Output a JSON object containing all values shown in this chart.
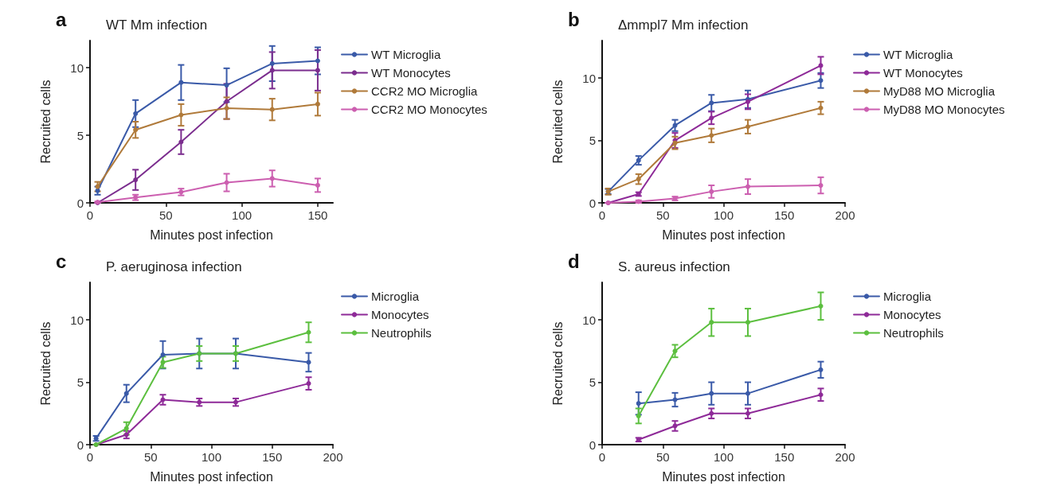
{
  "chart_data": [
    {
      "type": "line",
      "title": "WT Mm infection",
      "annotations": [
        "a"
      ],
      "xlabel": "Minutes post infection",
      "ylabel": "Recruited cells",
      "x": [
        5,
        30,
        60,
        90,
        120,
        150
      ],
      "xlim": [
        0,
        160
      ],
      "xticks": [
        0,
        50,
        100,
        150
      ],
      "ylim": [
        0,
        12
      ],
      "yticks": [
        0,
        5,
        10
      ],
      "legend": "right",
      "marker": "circle",
      "line_style": "solid",
      "grid": false,
      "series": [
        {
          "name": "WT Microglia",
          "color": "#3a5aa8",
          "values": [
            0.9,
            6.6,
            8.9,
            8.7,
            10.3,
            10.5
          ],
          "errors": [
            0.3,
            1.0,
            1.3,
            1.25,
            1.3,
            1.0
          ]
        },
        {
          "name": "WT Monocytes",
          "color": "#7b2d8e",
          "values": [
            0,
            1.7,
            4.5,
            7.5,
            9.8,
            9.8
          ],
          "errors": [
            0,
            0.75,
            0.9,
            1.3,
            1.35,
            1.5
          ]
        },
        {
          "name": "CCR2 MO Microglia",
          "color": "#b07a3a",
          "values": [
            1.2,
            5.4,
            6.5,
            7.0,
            6.9,
            7.3
          ],
          "errors": [
            0.35,
            0.6,
            0.8,
            0.8,
            0.8,
            0.85
          ]
        },
        {
          "name": "CCR2 MO Monocytes",
          "color": "#cc5fb0",
          "values": [
            0.05,
            0.4,
            0.8,
            1.5,
            1.8,
            1.3
          ],
          "errors": [
            0.05,
            0.2,
            0.25,
            0.65,
            0.6,
            0.5
          ]
        }
      ]
    },
    {
      "type": "line",
      "title": "Δmmpl7 Mm infection",
      "annotations": [
        "b"
      ],
      "xlabel": "Minutes post infection",
      "ylabel": "Recruited cells",
      "x": [
        5,
        30,
        60,
        90,
        120,
        180
      ],
      "xlim": [
        0,
        200
      ],
      "xticks": [
        0,
        50,
        100,
        150,
        200
      ],
      "ylim": [
        0,
        13
      ],
      "yticks": [
        0,
        5,
        10
      ],
      "legend": "right",
      "marker": "circle",
      "line_style": "solid",
      "grid": false,
      "series": [
        {
          "name": "WT Microglia",
          "color": "#3a5aa8",
          "values": [
            0.9,
            3.4,
            6.2,
            8.0,
            8.3,
            9.8
          ],
          "errors": [
            0.2,
            0.35,
            0.45,
            0.65,
            0.7,
            0.6
          ]
        },
        {
          "name": "WT Monocytes",
          "color": "#8e2a98",
          "values": [
            0,
            0.7,
            5.0,
            6.8,
            8.1,
            11.0
          ],
          "errors": [
            0,
            0.15,
            0.6,
            0.5,
            0.6,
            0.7
          ]
        },
        {
          "name": "MyD88 MO Microglia",
          "color": "#b07a3a",
          "values": [
            0.9,
            1.9,
            4.8,
            5.4,
            6.1,
            7.6
          ],
          "errors": [
            0.25,
            0.4,
            0.5,
            0.55,
            0.55,
            0.5
          ]
        },
        {
          "name": "MyD88 MO Monocytes",
          "color": "#cc5fb0",
          "values": [
            0,
            0.1,
            0.35,
            0.9,
            1.3,
            1.4
          ],
          "errors": [
            0,
            0.1,
            0.15,
            0.5,
            0.6,
            0.65
          ]
        }
      ]
    },
    {
      "type": "line",
      "title": "P. aeruginosa infection",
      "annotations": [
        "c"
      ],
      "xlabel": "Minutes post infection",
      "ylabel": "Recruited cells",
      "x": [
        5,
        30,
        60,
        90,
        120,
        180
      ],
      "xlim": [
        0,
        200
      ],
      "xticks": [
        0,
        50,
        100,
        150,
        200
      ],
      "ylim": [
        0,
        13
      ],
      "yticks": [
        0,
        5,
        10
      ],
      "legend": "right",
      "marker": "circle",
      "line_style": "solid",
      "grid": false,
      "series": [
        {
          "name": "Microglia",
          "color": "#3a5aa8",
          "values": [
            0.5,
            4.1,
            7.2,
            7.3,
            7.3,
            6.6
          ],
          "errors": [
            0.2,
            0.7,
            1.1,
            1.2,
            1.2,
            0.75
          ]
        },
        {
          "name": "Monocytes",
          "color": "#8e2a98",
          "values": [
            0,
            0.8,
            3.6,
            3.4,
            3.4,
            4.9
          ],
          "errors": [
            0,
            0.3,
            0.4,
            0.3,
            0.3,
            0.5
          ]
        },
        {
          "name": "Neutrophils",
          "color": "#5cbf3f",
          "values": [
            0,
            1.3,
            6.6,
            7.3,
            7.3,
            9.0
          ],
          "errors": [
            0,
            0.5,
            0.45,
            0.6,
            0.6,
            0.8
          ]
        }
      ]
    },
    {
      "type": "line",
      "title": "S. aureus infection",
      "annotations": [
        "d"
      ],
      "xlabel": "Minutes post infection",
      "ylabel": "Recruited cells",
      "x": [
        30,
        60,
        90,
        120,
        180
      ],
      "xlim": [
        0,
        200
      ],
      "xticks": [
        0,
        50,
        100,
        150,
        200
      ],
      "ylim": [
        0,
        13
      ],
      "yticks": [
        0,
        5,
        10
      ],
      "legend": "right",
      "marker": "circle",
      "line_style": "solid",
      "grid": false,
      "series": [
        {
          "name": "Microglia",
          "color": "#3a5aa8",
          "values": [
            3.3,
            3.6,
            4.1,
            4.1,
            6.0
          ],
          "errors": [
            0.9,
            0.55,
            0.9,
            0.9,
            0.65
          ]
        },
        {
          "name": "Monocytes",
          "color": "#8e2a98",
          "values": [
            0.4,
            1.5,
            2.5,
            2.5,
            4.0
          ],
          "errors": [
            0.15,
            0.4,
            0.4,
            0.4,
            0.5
          ]
        },
        {
          "name": "Neutrophils",
          "color": "#5cbf3f",
          "values": [
            2.3,
            7.5,
            9.8,
            9.8,
            11.1
          ],
          "errors": [
            0.6,
            0.5,
            1.1,
            1.1,
            1.1
          ]
        }
      ]
    }
  ]
}
